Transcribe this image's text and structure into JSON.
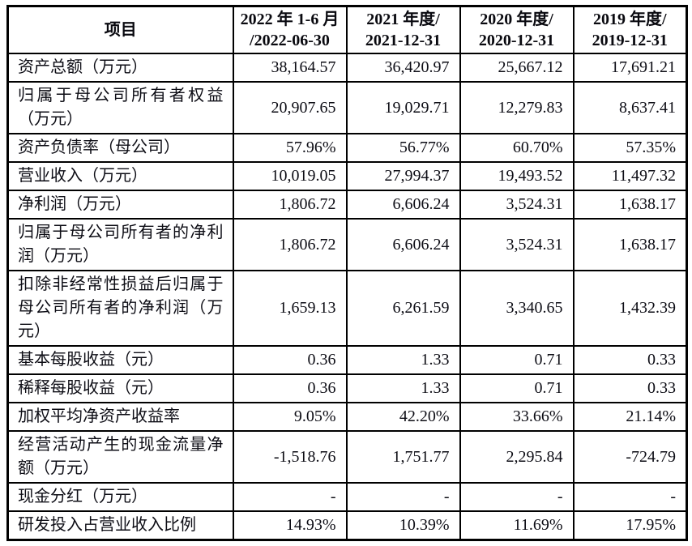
{
  "colors": {
    "background": "#ffffff",
    "border": "#000000",
    "text": "#0d0d15"
  },
  "table": {
    "header": {
      "item_label": "项目",
      "periods": [
        "2022 年 1-6 月\n/2022-06-30",
        "2021 年度/\n2021-12-31",
        "2020 年度/\n2020-12-31",
        "2019 年度/\n2019-12-31"
      ]
    },
    "rows": [
      {
        "label": "资产总额（万元）",
        "values": [
          "38,164.57",
          "36,420.97",
          "25,667.12",
          "17,691.21"
        ]
      },
      {
        "label": "归属于母公司所有者权益（万元）",
        "values": [
          "20,907.65",
          "19,029.71",
          "12,279.83",
          "8,637.41"
        ]
      },
      {
        "label": "资产负债率（母公司）",
        "values": [
          "57.96%",
          "56.77%",
          "60.70%",
          "57.35%"
        ]
      },
      {
        "label": "营业收入（万元）",
        "values": [
          "10,019.05",
          "27,994.37",
          "19,493.52",
          "11,497.32"
        ]
      },
      {
        "label": "净利润（万元）",
        "values": [
          "1,806.72",
          "6,606.24",
          "3,524.31",
          "1,638.17"
        ]
      },
      {
        "label": "归属于母公司所有者的净利润（万元）",
        "values": [
          "1,806.72",
          "6,606.24",
          "3,524.31",
          "1,638.17"
        ]
      },
      {
        "label": "扣除非经常性损益后归属于母公司所有者的净利润（万元）",
        "values": [
          "1,659.13",
          "6,261.59",
          "3,340.65",
          "1,432.39"
        ]
      },
      {
        "label": "基本每股收益（元）",
        "values": [
          "0.36",
          "1.33",
          "0.71",
          "0.33"
        ]
      },
      {
        "label": "稀释每股收益（元）",
        "values": [
          "0.36",
          "1.33",
          "0.71",
          "0.33"
        ]
      },
      {
        "label": "加权平均净资产收益率",
        "values": [
          "9.05%",
          "42.20%",
          "33.66%",
          "21.14%"
        ]
      },
      {
        "label": "经营活动产生的现金流量净额（万元）",
        "values": [
          "-1,518.76",
          "1,751.77",
          "2,295.84",
          "-724.79"
        ]
      },
      {
        "label": "现金分红（万元）",
        "values": [
          "-",
          "-",
          "-",
          "-"
        ]
      },
      {
        "label": "研发投入占营业收入比例",
        "values": [
          "14.93%",
          "10.39%",
          "11.69%",
          "17.95%"
        ]
      }
    ]
  }
}
